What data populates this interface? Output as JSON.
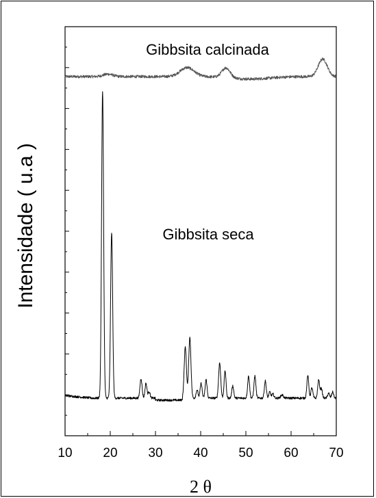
{
  "chart_data": {
    "type": "line",
    "xlabel": "2 θ",
    "ylabel": "Intensidade ( u.a )",
    "xlim": [
      10,
      70
    ],
    "xticks": [
      "10",
      "20",
      "30",
      "40",
      "50",
      "60",
      "70"
    ],
    "y_tick_labels": "none",
    "ylim": [
      0,
      100
    ],
    "grid": false,
    "colors": {
      "dried": "#000000",
      "calcined": "#555555"
    },
    "annotations": [
      {
        "text": "Gibbsita calcinada",
        "x": 40,
        "y": 96
      },
      {
        "text": "Gibbsita seca",
        "x": 40,
        "y": 50
      }
    ],
    "series": [
      {
        "name": "Gibbsita calcinada",
        "baseline": 87.8,
        "peaks": [
          {
            "x": 19.5,
            "h": 0.6,
            "w": 1.5
          },
          {
            "x": 37.0,
            "h": 2.2,
            "w": 2.2
          },
          {
            "x": 45.6,
            "h": 2.4,
            "w": 1.3
          },
          {
            "x": 67.0,
            "h": 4.3,
            "w": 1.4
          }
        ]
      },
      {
        "name": "Gibbsita seca",
        "baseline": 9.2,
        "peaks": [
          {
            "x": 18.3,
            "h": 75.0,
            "w": 0.32
          },
          {
            "x": 20.3,
            "h": 40.5,
            "w": 0.32
          },
          {
            "x": 26.8,
            "h": 4.8,
            "w": 0.32
          },
          {
            "x": 27.9,
            "h": 3.6,
            "w": 0.3
          },
          {
            "x": 28.6,
            "h": 1.6,
            "w": 0.3
          },
          {
            "x": 36.6,
            "h": 12.5,
            "w": 0.35
          },
          {
            "x": 37.6,
            "h": 14.8,
            "w": 0.35
          },
          {
            "x": 39.2,
            "h": 2.0,
            "w": 0.3
          },
          {
            "x": 40.1,
            "h": 3.6,
            "w": 0.3
          },
          {
            "x": 41.2,
            "h": 4.5,
            "w": 0.3
          },
          {
            "x": 44.2,
            "h": 8.6,
            "w": 0.33
          },
          {
            "x": 45.4,
            "h": 6.6,
            "w": 0.3
          },
          {
            "x": 47.1,
            "h": 3.0,
            "w": 0.3
          },
          {
            "x": 50.6,
            "h": 5.4,
            "w": 0.3
          },
          {
            "x": 52.0,
            "h": 5.4,
            "w": 0.3
          },
          {
            "x": 54.3,
            "h": 4.2,
            "w": 0.3
          },
          {
            "x": 55.3,
            "h": 1.5,
            "w": 0.3
          },
          {
            "x": 56.0,
            "h": 1.0,
            "w": 0.3
          },
          {
            "x": 58.0,
            "h": 0.8,
            "w": 0.4
          },
          {
            "x": 63.7,
            "h": 5.4,
            "w": 0.3
          },
          {
            "x": 64.6,
            "h": 2.5,
            "w": 0.3
          },
          {
            "x": 66.1,
            "h": 4.4,
            "w": 0.3
          },
          {
            "x": 66.7,
            "h": 2.3,
            "w": 0.3
          },
          {
            "x": 68.3,
            "h": 1.2,
            "w": 0.3
          },
          {
            "x": 69.2,
            "h": 1.5,
            "w": 0.3
          }
        ]
      }
    ]
  }
}
